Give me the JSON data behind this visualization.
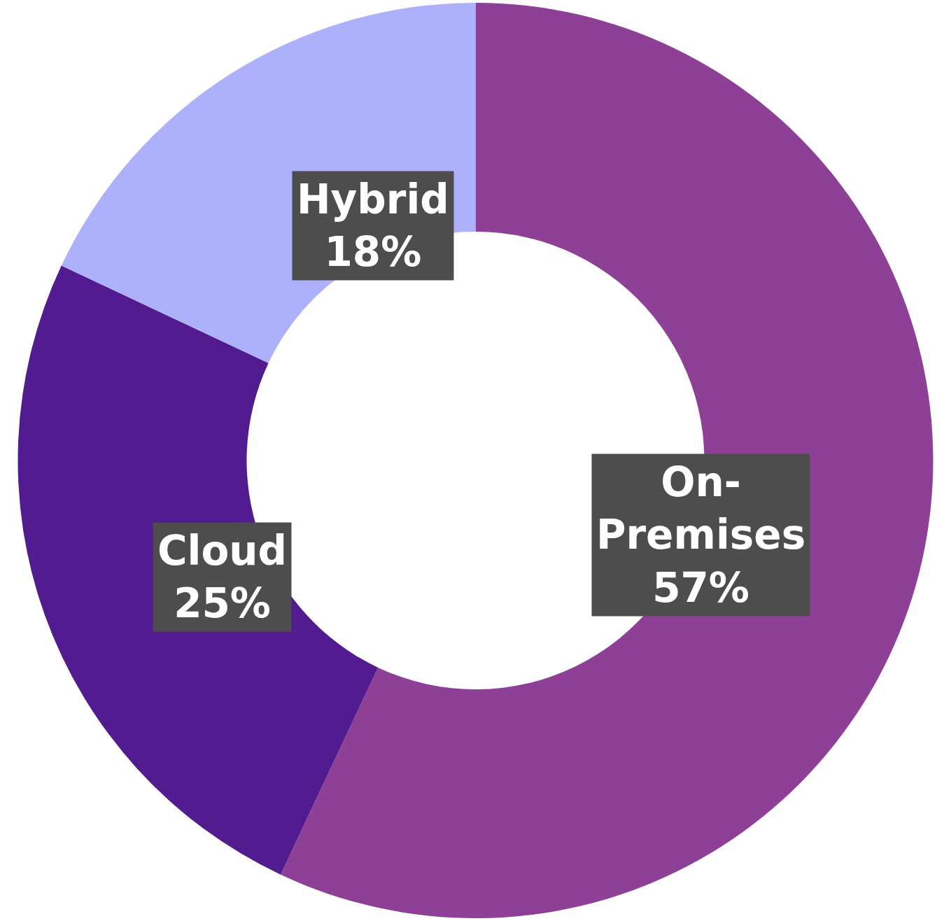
{
  "chart_data": {
    "type": "donut",
    "categories": [
      "On-Premises",
      "Cloud",
      "Hybrid"
    ],
    "values": [
      57,
      25,
      18
    ],
    "colors": [
      "#8e4096",
      "#521b8f",
      "#adb1fc"
    ],
    "value_labels": [
      "57%",
      "25%",
      "18%"
    ],
    "legend": false
  }
}
